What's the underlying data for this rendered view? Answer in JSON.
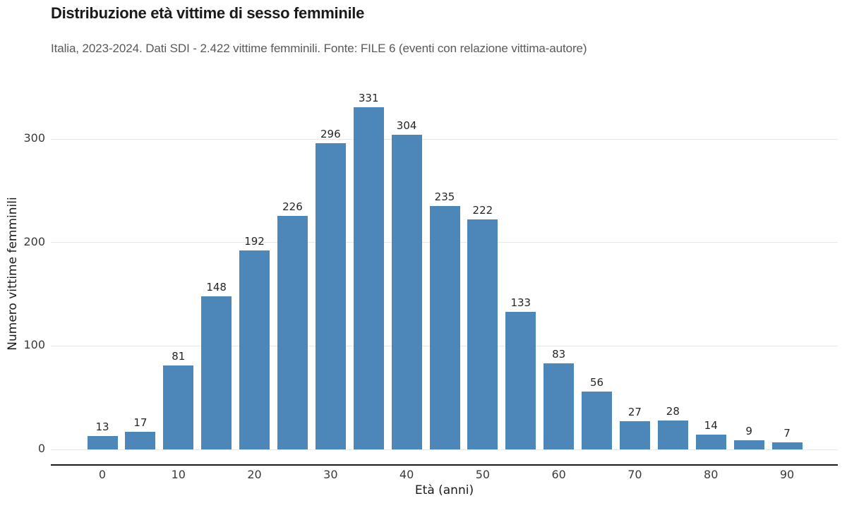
{
  "header": {
    "title": "Distribuzione età vittime di sesso femminile",
    "subtitle": "Italia, 2023-2024. Dati SDI - 2.422 vittime femminili. Fonte: FILE 6 (eventi con relazione vittima-autore)"
  },
  "colors": {
    "bar": "#4d87ba",
    "grid": "#e8e8e8",
    "axis_line": "#1a1a1a",
    "title_text": "#1a1a1a",
    "subtitle_text": "#595959",
    "tick_text": "#3a3a3a",
    "background": "#ffffff"
  },
  "chart_data": {
    "type": "bar",
    "title": "Distribuzione età vittime di sesso femminile",
    "subtitle": "Italia, 2023-2024. Dati SDI - 2.422 vittime femminili. Fonte: FILE 6 (eventi con relazione vittima-autore)",
    "x": [
      0,
      5,
      10,
      15,
      20,
      25,
      30,
      35,
      40,
      45,
      50,
      55,
      60,
      65,
      70,
      75,
      80,
      85,
      90
    ],
    "values": [
      13,
      17,
      81,
      148,
      192,
      226,
      296,
      331,
      304,
      235,
      222,
      133,
      83,
      56,
      27,
      28,
      14,
      9,
      7
    ],
    "bar_labels_visible": true,
    "xlabel": "Età (anni)",
    "ylabel": "Numero vittime femminili",
    "xticks": [
      0,
      10,
      20,
      30,
      40,
      50,
      60,
      70,
      80,
      90
    ],
    "yticks": [
      0,
      100,
      200,
      300
    ],
    "ylim": [
      0,
      345
    ],
    "grid": "horizontal",
    "legend": "none",
    "total": 2422
  }
}
